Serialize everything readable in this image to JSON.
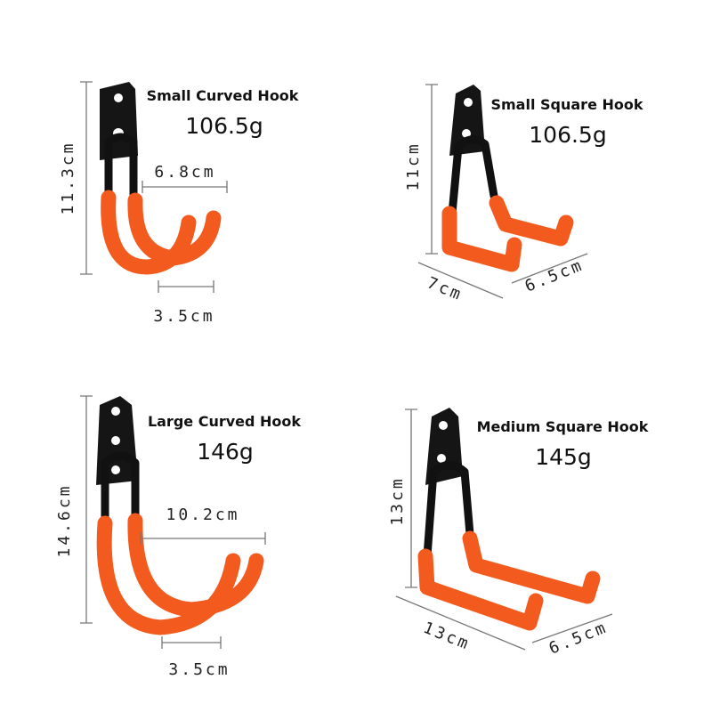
{
  "products": [
    {
      "name": "Small Curved Hook",
      "weight": "106.5g",
      "dims": [
        "11.3cm",
        "6.8cm",
        "3.5cm"
      ]
    },
    {
      "name": "Small Square Hook",
      "weight": "106.5g",
      "dims": [
        "11cm",
        "7cm",
        "6.5cm"
      ]
    },
    {
      "name": "Large Curved Hook",
      "weight": "146g",
      "dims": [
        "14.6cm",
        "10.2cm",
        "3.5cm"
      ]
    },
    {
      "name": "Medium Square Hook",
      "weight": "145g",
      "dims": [
        "13cm",
        "13cm",
        "6.5cm"
      ]
    }
  ]
}
